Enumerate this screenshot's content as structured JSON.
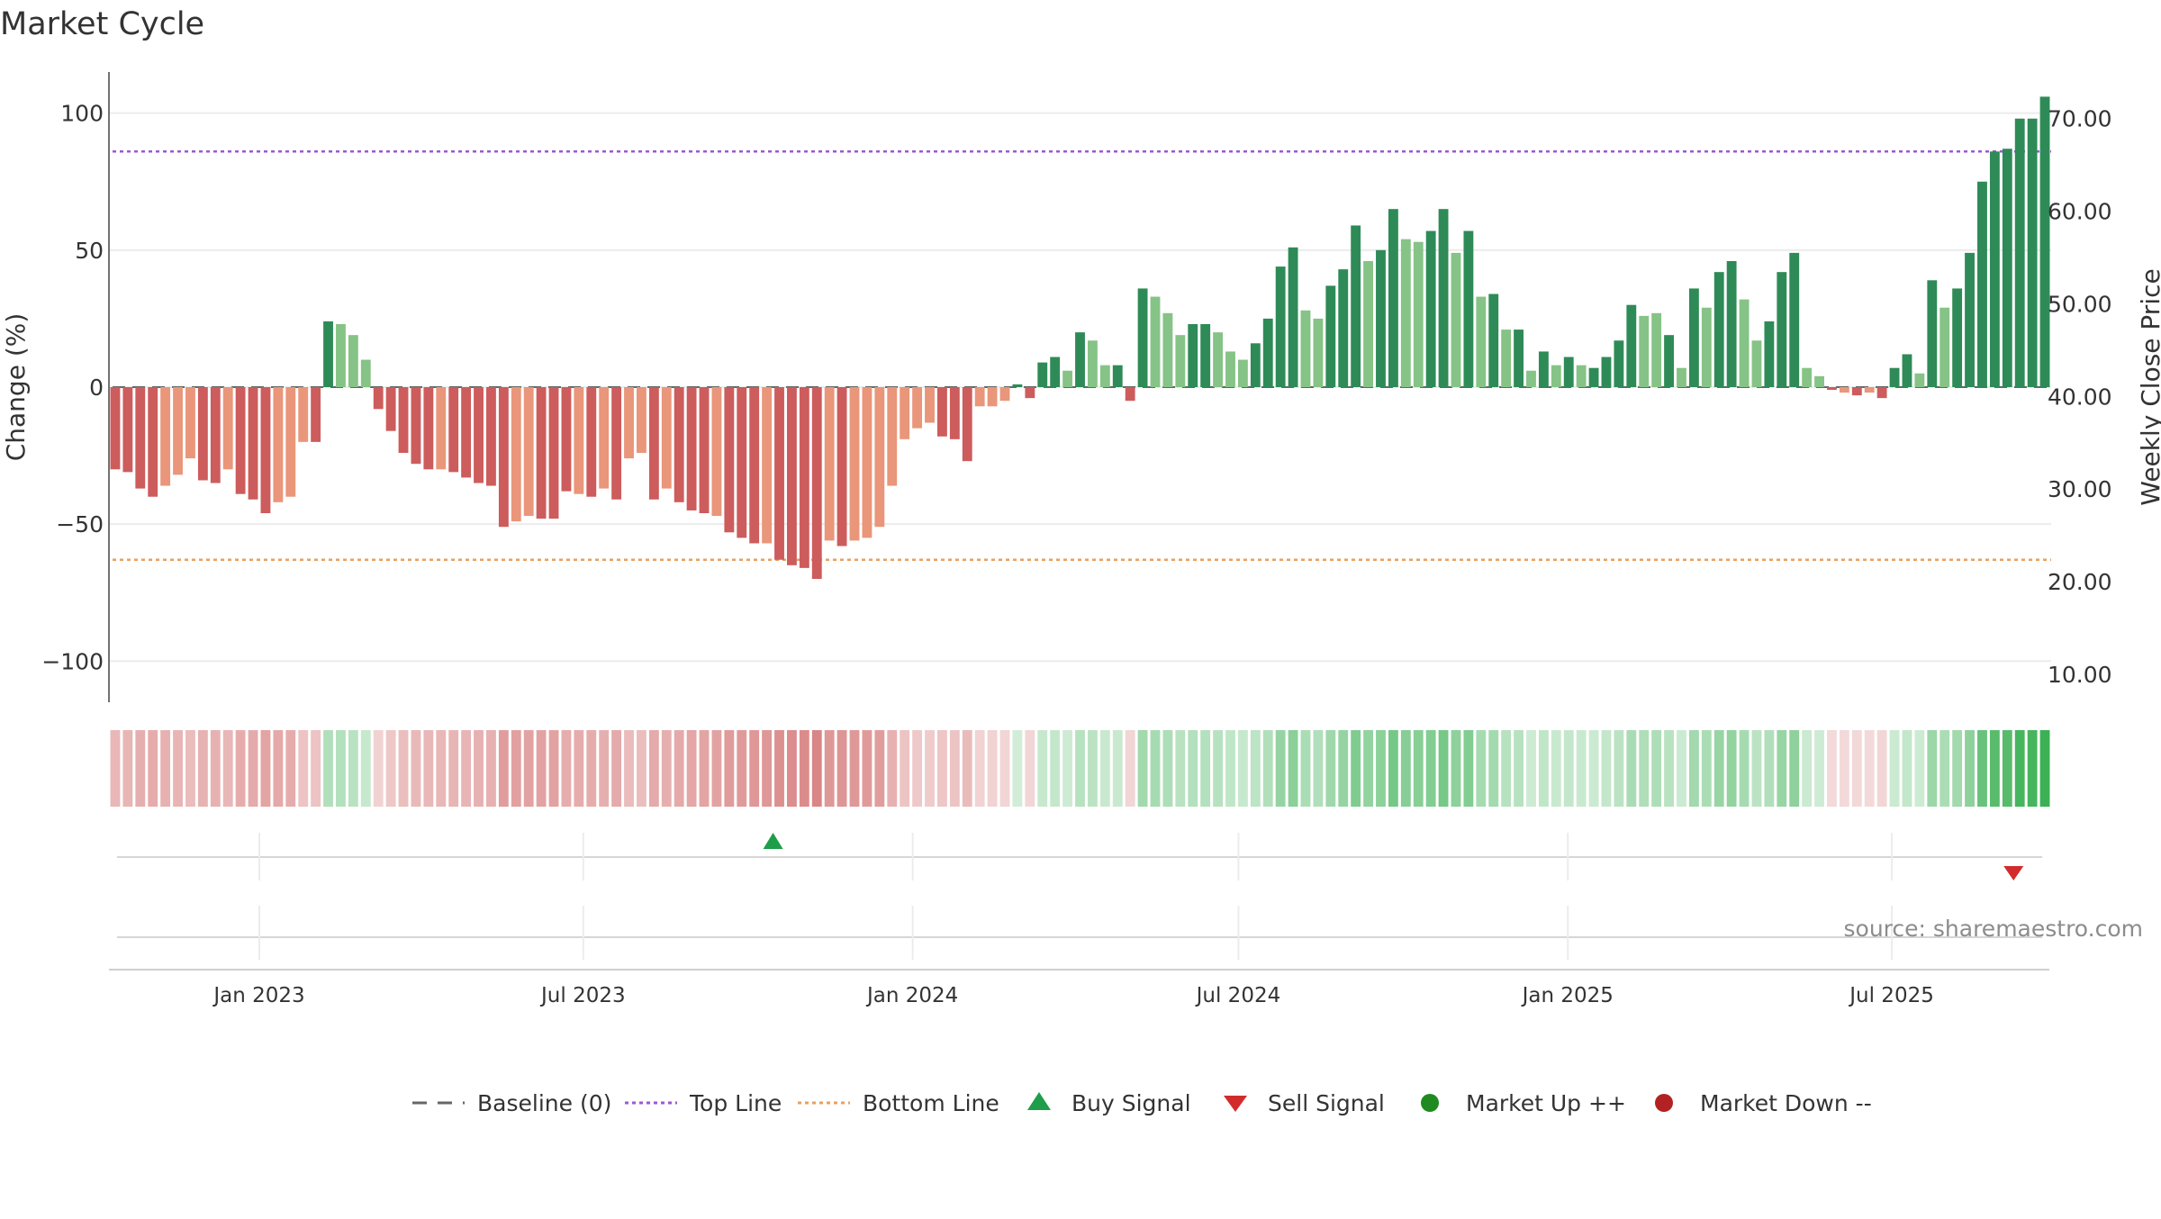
{
  "chart_data": {
    "type": "bar",
    "title": "Market Cycle",
    "ylabel": "Change (%)",
    "y2label": "Weekly Close Price",
    "ylim": [
      -115,
      115
    ],
    "y2lim": [
      7,
      75
    ],
    "yticks": [
      {
        "v": 100,
        "label": "100"
      },
      {
        "v": 50,
        "label": "50"
      },
      {
        "v": 0,
        "label": "0"
      },
      {
        "v": -50,
        "label": "−50"
      },
      {
        "v": -100,
        "label": "−100"
      }
    ],
    "y2ticks": [
      "70.00",
      "60.00",
      "50.00",
      "40.00",
      "30.00",
      "20.00",
      "10.00"
    ],
    "top_line": 86,
    "bottom_line": -63,
    "x_range": [
      "2022-10-09",
      "2025-09-28"
    ],
    "x_ticks": [
      {
        "date": "2023-01-01",
        "label": "Jan 2023"
      },
      {
        "date": "2023-07-01",
        "label": "Jul 2023"
      },
      {
        "date": "2024-01-01",
        "label": "Jan 2024"
      },
      {
        "date": "2024-07-01",
        "label": "Jul 2024"
      },
      {
        "date": "2025-01-01",
        "label": "Jan 2025"
      },
      {
        "date": "2025-07-01",
        "label": "Jul 2025"
      }
    ],
    "weeks_start": "2022-10-09",
    "bar_colors": {
      "pos_strong": "#2e8b57",
      "pos_light": "#86c386",
      "neg_strong": "#cd5c5c",
      "neg_light": "#e9967a"
    },
    "changes": [
      -30,
      -31,
      -37,
      -40,
      -36,
      -32,
      -26,
      -34,
      -35,
      -30,
      -39,
      -41,
      -46,
      -42,
      -40,
      -20,
      -20,
      24,
      23,
      19,
      10,
      -8,
      -16,
      -24,
      -28,
      -30,
      -30,
      -31,
      -33,
      -35,
      -36,
      -51,
      -49,
      -47,
      -48,
      -48,
      -38,
      -39,
      -40,
      -37,
      -41,
      -26,
      -24,
      -41,
      -37,
      -42,
      -45,
      -46,
      -47,
      -53,
      -55,
      -57,
      -57,
      -63,
      -65,
      -66,
      -70,
      -56,
      -58,
      -56,
      -55,
      -51,
      -36,
      -19,
      -15,
      -13,
      -18,
      -19,
      -27,
      -7,
      -7,
      -5,
      1,
      -4,
      9,
      11,
      6,
      20,
      17,
      8,
      8,
      -5,
      36,
      33,
      27,
      19,
      23,
      23,
      20,
      13,
      10,
      16,
      25,
      44,
      51,
      28,
      25,
      37,
      43,
      59,
      46,
      50,
      65,
      54,
      53,
      57,
      65,
      49,
      57,
      33,
      34,
      21,
      21,
      6,
      13,
      8,
      11,
      8,
      7,
      11,
      17,
      30,
      26,
      27,
      19,
      7,
      36,
      29,
      42,
      46,
      32,
      17,
      24,
      42,
      49,
      7,
      4,
      -1,
      -2,
      -3,
      -2,
      -4,
      7,
      12,
      5,
      39,
      29,
      36,
      49,
      75,
      86,
      87,
      98,
      98,
      106
    ],
    "bar_shades": [
      "S",
      "S",
      "S",
      "S",
      "L",
      "L",
      "L",
      "S",
      "S",
      "L",
      "S",
      "S",
      "S",
      "L",
      "L",
      "L",
      "S",
      "S",
      "L",
      "L",
      "L",
      "S",
      "S",
      "S",
      "S",
      "S",
      "L",
      "S",
      "S",
      "S",
      "S",
      "S",
      "L",
      "L",
      "S",
      "S",
      "S",
      "L",
      "S",
      "L",
      "S",
      "L",
      "L",
      "S",
      "L",
      "S",
      "S",
      "S",
      "L",
      "S",
      "S",
      "S",
      "L",
      "S",
      "S",
      "S",
      "S",
      "L",
      "S",
      "L",
      "L",
      "L",
      "L",
      "L",
      "L",
      "L",
      "S",
      "S",
      "S",
      "L",
      "L",
      "L",
      "S",
      "S",
      "S",
      "S",
      "L",
      "S",
      "L",
      "L",
      "S",
      "S",
      "S",
      "L",
      "L",
      "L",
      "S",
      "S",
      "L",
      "L",
      "L",
      "S",
      "S",
      "S",
      "S",
      "L",
      "L",
      "S",
      "S",
      "S",
      "L",
      "S",
      "S",
      "L",
      "L",
      "S",
      "S",
      "L",
      "S",
      "L",
      "S",
      "L",
      "S",
      "L",
      "S",
      "L",
      "S",
      "L",
      "S",
      "S",
      "S",
      "S",
      "L",
      "L",
      "S",
      "L",
      "S",
      "L",
      "S",
      "S",
      "L",
      "L",
      "S",
      "S",
      "S",
      "L",
      "L",
      "S",
      "L",
      "S",
      "L",
      "S",
      "S",
      "S",
      "L",
      "S",
      "L",
      "S",
      "S",
      "S",
      "S",
      "S",
      "S",
      "S",
      "S"
    ],
    "heat_strip": {
      "neg_color": "#cd5c5c",
      "pos_color": "#3cb054"
    },
    "signals": [
      {
        "type": "buy",
        "date": "2023-10-15"
      },
      {
        "type": "sell",
        "date": "2025-09-07"
      }
    ],
    "source_note": "source: sharemaestro.com",
    "legend": [
      {
        "label": "Baseline (0)",
        "symbol": "dash",
        "color": "#666666"
      },
      {
        "label": "Top Line",
        "symbol": "dot",
        "color": "#9b59d0"
      },
      {
        "label": "Bottom Line",
        "symbol": "dot",
        "color": "#e8a060"
      },
      {
        "label": "Buy Signal",
        "symbol": "triangle-up",
        "color": "#1e9e4a"
      },
      {
        "label": "Sell Signal",
        "symbol": "triangle-down",
        "color": "#d22b2b"
      },
      {
        "label": "Market Up ++",
        "symbol": "circle",
        "color": "#1f8a1f"
      },
      {
        "label": "Market Down --",
        "symbol": "circle",
        "color": "#b22222"
      }
    ]
  }
}
